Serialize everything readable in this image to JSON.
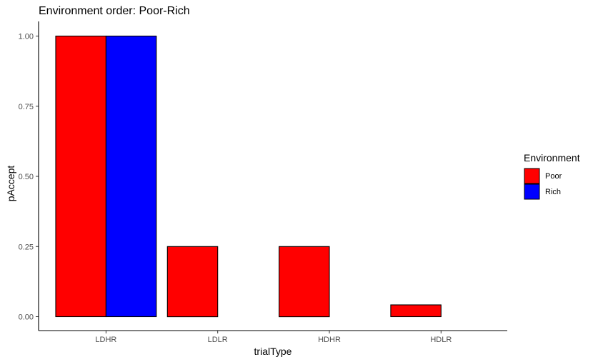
{
  "chart_data": {
    "type": "bar",
    "title": "Environment order: Poor-Rich",
    "xlabel": "trialType",
    "ylabel": "pAccept",
    "categories": [
      "LDHR",
      "LDLR",
      "HDHR",
      "HDLR"
    ],
    "series": [
      {
        "name": "Poor",
        "color": "#ff0000",
        "values": [
          1.0,
          0.25,
          0.25,
          0.042
        ]
      },
      {
        "name": "Rich",
        "color": "#0000ff",
        "values": [
          1.0,
          0.0,
          0.0,
          0.0
        ]
      }
    ],
    "ylim": [
      0,
      1.0
    ],
    "yticks": [
      "0.00",
      "0.25",
      "0.50",
      "0.75",
      "1.00"
    ],
    "grid": false,
    "legend": {
      "title": "Environment",
      "position": "right"
    }
  }
}
